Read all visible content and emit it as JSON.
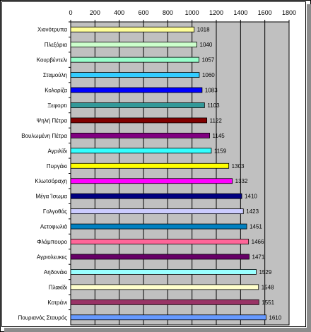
{
  "chart_data": {
    "type": "bar",
    "orientation": "horizontal",
    "title": "",
    "xlabel": "",
    "ylabel": "",
    "xlim": [
      0,
      1800
    ],
    "x_ticks": [
      "0",
      "200",
      "400",
      "600",
      "800",
      "1000",
      "1200",
      "1400",
      "1600",
      "1800"
    ],
    "grid": true,
    "legend": "none",
    "plot_background": "#c0c0c0",
    "categories": [
      "Χιονότρυπα",
      "Πλεξάρια",
      "Κουρβέντελι",
      "Σταμούλη",
      "Κολορίζα",
      "Ξεφορτι",
      "Ψηλή Πέτρα",
      "Βουλωμένη Πέτρα",
      "Αγριλίδι",
      "Πυργάκι",
      "Κλωτσόραχη",
      "Μέγα Ίσωμα",
      "Γολγοθάς",
      "Αετοφωλιά",
      "Φλάμπουρο",
      "Αγριολευκες",
      "Αηδονάκι",
      "Πλακίδι",
      "Κοτράνι",
      "Πουριανός Σταυρός"
    ],
    "values": [
      1018,
      1040,
      1057,
      1060,
      1083,
      1103,
      1122,
      1145,
      1159,
      1303,
      1332,
      1410,
      1423,
      1451,
      1466,
      1471,
      1529,
      1548,
      1551,
      1610
    ],
    "value_labels": [
      "1018",
      "1040",
      "1057",
      "1060",
      "1083",
      "1103",
      "1122",
      "1145",
      "1159",
      "1303",
      "1332",
      "1410",
      "1423",
      "1451",
      "1466",
      "1471",
      "1529",
      "1548",
      "1551",
      "1610"
    ],
    "bar_colors": [
      "#ffff99",
      "#ccffcc",
      "#99ffcc",
      "#33ccff",
      "#0000ff",
      "#339999",
      "#800000",
      "#800080",
      "#33ffff",
      "#ffff00",
      "#ff00ff",
      "#000080",
      "#ccccff",
      "#0080c0",
      "#ff6699",
      "#660066",
      "#99ffff",
      "#ffffcc",
      "#993366",
      "#6699ff"
    ]
  }
}
